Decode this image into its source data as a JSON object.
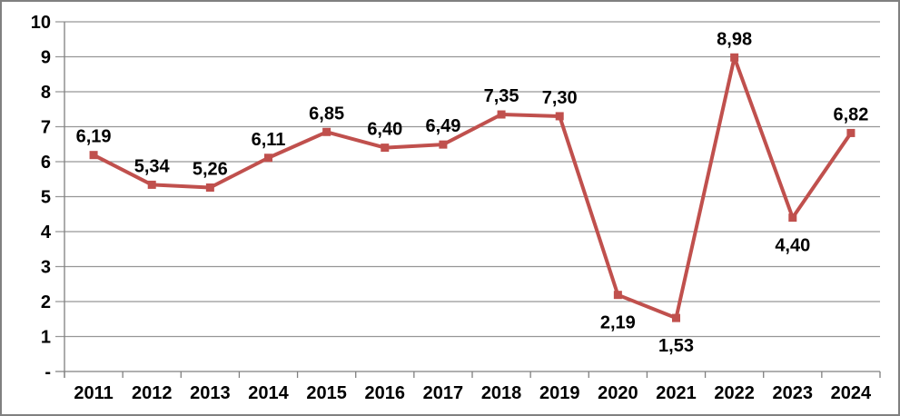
{
  "chart_data": {
    "type": "line",
    "title": "",
    "xlabel": "",
    "ylabel": "",
    "categories": [
      "2011",
      "2012",
      "2013",
      "2014",
      "2015",
      "2016",
      "2017",
      "2018",
      "2019",
      "2020",
      "2021",
      "2022",
      "2023",
      "2024"
    ],
    "values": [
      6.19,
      5.34,
      5.26,
      6.11,
      6.85,
      6.4,
      6.49,
      7.35,
      7.3,
      2.19,
      1.53,
      8.98,
      4.4,
      6.82
    ],
    "point_labels": [
      "6,19",
      "5,34",
      "5,26",
      "6,11",
      "6,85",
      "6,40",
      "6,49",
      "7,35",
      "7,30",
      "2,19",
      "1,53",
      "8,98",
      "4,40",
      "6,82"
    ],
    "label_positions": [
      "above",
      "above",
      "above",
      "above",
      "above",
      "above",
      "above",
      "above",
      "above",
      "below",
      "below",
      "above",
      "below",
      "above"
    ],
    "ylim": [
      0,
      10
    ],
    "y_tick_labels": [
      "-",
      "1",
      "2",
      "3",
      "4",
      "5",
      "6",
      "7",
      "8",
      "9",
      "10"
    ],
    "grid": true,
    "legend": "none",
    "marker": "square",
    "colors": {
      "line": "#C0504D",
      "marker": "#C0504D",
      "gridline": "#969696",
      "axis": "#808080",
      "text": "#000000",
      "frame_border": "#808080",
      "background": "#FFFFFF"
    }
  }
}
